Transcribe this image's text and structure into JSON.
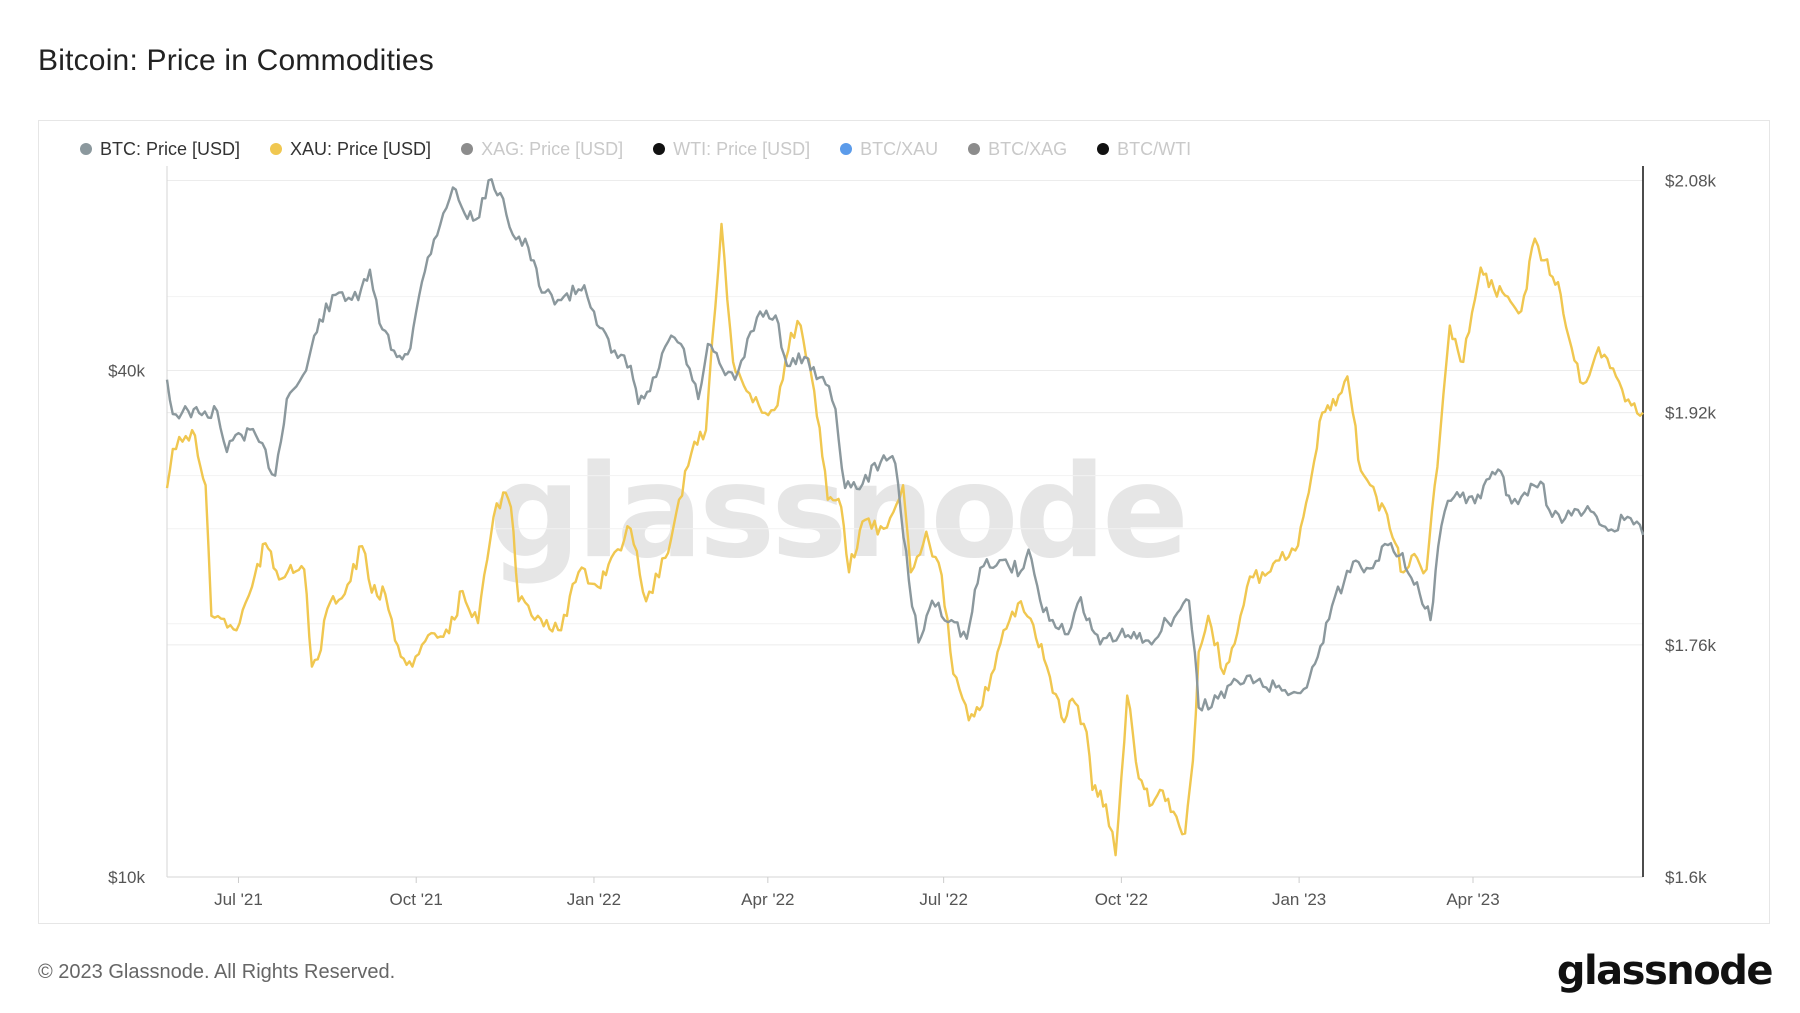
{
  "title": "Bitcoin: Price in Commodities",
  "footer": {
    "copyright": "© 2023 Glassnode. All Rights Reserved.",
    "brand": "glassnode"
  },
  "watermark": "glassnode",
  "legend": [
    {
      "label": "BTC: Price [USD]",
      "color": "#8b989d",
      "active": true,
      "icon": "legend-dot"
    },
    {
      "label": "XAU: Price [USD]",
      "color": "#f0c750",
      "active": true,
      "icon": "legend-dot"
    },
    {
      "label": "XAG: Price [USD]",
      "color": "#8c8c8c",
      "active": false,
      "icon": "legend-dot"
    },
    {
      "label": "WTI: Price [USD]",
      "color": "#111111",
      "active": false,
      "icon": "legend-dot"
    },
    {
      "label": "BTC/XAU",
      "color": "#5b9bea",
      "active": false,
      "icon": "legend-dot"
    },
    {
      "label": "BTC/XAG",
      "color": "#8c8c8c",
      "active": false,
      "icon": "legend-dot"
    },
    {
      "label": "BTC/WTI",
      "color": "#111111",
      "active": false,
      "icon": "legend-dot"
    }
  ],
  "chart_data": {
    "type": "line",
    "title": "Bitcoin: Price in Commodities",
    "grid": true,
    "legend_position": "top-left",
    "x_range": [
      "2021-05-25",
      "2023-06-28"
    ],
    "x_ticks": [
      {
        "date": "2021-07-01",
        "label": "Jul '21"
      },
      {
        "date": "2021-10-01",
        "label": "Oct '21"
      },
      {
        "date": "2022-01-01",
        "label": "Jan '22"
      },
      {
        "date": "2022-04-01",
        "label": "Apr '22"
      },
      {
        "date": "2022-07-01",
        "label": "Jul '22"
      },
      {
        "date": "2022-10-01",
        "label": "Oct '22"
      },
      {
        "date": "2023-01-01",
        "label": "Jan '23"
      },
      {
        "date": "2023-04-01",
        "label": "Apr '23"
      }
    ],
    "y_left": {
      "scale": "log",
      "range": [
        10000,
        70000
      ],
      "ticks": [
        {
          "value": 40000,
          "label": "$40k"
        },
        {
          "value": 10000,
          "label": "$10k"
        }
      ]
    },
    "y_right": {
      "scale": "linear",
      "range": [
        1600,
        2090
      ],
      "ticks": [
        {
          "value": 2080,
          "label": "$2.08k"
        },
        {
          "value": 1920,
          "label": "$1.92k"
        },
        {
          "value": 1760,
          "label": "$1.76k"
        },
        {
          "value": 1600,
          "label": "$1.6k"
        }
      ]
    },
    "series": [
      {
        "name": "BTC: Price [USD]",
        "axis": "left",
        "color": "#8b989d",
        "points": [
          [
            "2021-05-25",
            39000
          ],
          [
            "2021-05-28",
            35500
          ],
          [
            "2021-06-05",
            35800
          ],
          [
            "2021-06-12",
            35400
          ],
          [
            "2021-06-20",
            35800
          ],
          [
            "2021-06-25",
            32000
          ],
          [
            "2021-07-01",
            33700
          ],
          [
            "2021-07-10",
            33500
          ],
          [
            "2021-07-20",
            30000
          ],
          [
            "2021-07-26",
            37000
          ],
          [
            "2021-08-05",
            40000
          ],
          [
            "2021-08-12",
            46000
          ],
          [
            "2021-08-22",
            49500
          ],
          [
            "2021-09-01",
            48500
          ],
          [
            "2021-09-07",
            52700
          ],
          [
            "2021-09-12",
            45500
          ],
          [
            "2021-09-21",
            41500
          ],
          [
            "2021-09-28",
            42500
          ],
          [
            "2021-10-01",
            47000
          ],
          [
            "2021-10-07",
            54500
          ],
          [
            "2021-10-15",
            61500
          ],
          [
            "2021-10-20",
            66000
          ],
          [
            "2021-10-26",
            61500
          ],
          [
            "2021-11-01",
            60500
          ],
          [
            "2021-11-09",
            67500
          ],
          [
            "2021-11-15",
            64000
          ],
          [
            "2021-11-20",
            58000
          ],
          [
            "2021-11-28",
            56000
          ],
          [
            "2021-12-05",
            49500
          ],
          [
            "2021-12-15",
            48500
          ],
          [
            "2021-12-27",
            50500
          ],
          [
            "2022-01-01",
            47000
          ],
          [
            "2022-01-10",
            42000
          ],
          [
            "2022-01-20",
            40500
          ],
          [
            "2022-01-24",
            36500
          ],
          [
            "2022-01-30",
            37800
          ],
          [
            "2022-02-10",
            44000
          ],
          [
            "2022-02-15",
            43000
          ],
          [
            "2022-02-24",
            37000
          ],
          [
            "2022-03-01",
            43000
          ],
          [
            "2022-03-10",
            39500
          ],
          [
            "2022-03-15",
            39000
          ],
          [
            "2022-03-28",
            47000
          ],
          [
            "2022-04-05",
            46500
          ],
          [
            "2022-04-11",
            40500
          ],
          [
            "2022-04-20",
            41500
          ],
          [
            "2022-05-01",
            38500
          ],
          [
            "2022-05-06",
            36000
          ],
          [
            "2022-05-11",
            29000
          ],
          [
            "2022-05-20",
            29300
          ],
          [
            "2022-05-31",
            31700
          ],
          [
            "2022-06-06",
            31000
          ],
          [
            "2022-06-13",
            22500
          ],
          [
            "2022-06-18",
            19000
          ],
          [
            "2022-06-25",
            21300
          ],
          [
            "2022-07-05",
            20200
          ],
          [
            "2022-07-13",
            19200
          ],
          [
            "2022-07-20",
            23300
          ],
          [
            "2022-07-30",
            23800
          ],
          [
            "2022-08-10",
            23100
          ],
          [
            "2022-08-14",
            24500
          ],
          [
            "2022-08-20",
            21300
          ],
          [
            "2022-08-28",
            19800
          ],
          [
            "2022-09-05",
            19800
          ],
          [
            "2022-09-10",
            21500
          ],
          [
            "2022-09-13",
            20200
          ],
          [
            "2022-09-20",
            18900
          ],
          [
            "2022-09-30",
            19400
          ],
          [
            "2022-10-15",
            19100
          ],
          [
            "2022-10-25",
            20100
          ],
          [
            "2022-10-30",
            20600
          ],
          [
            "2022-11-05",
            21300
          ],
          [
            "2022-11-08",
            18500
          ],
          [
            "2022-11-10",
            15900
          ],
          [
            "2022-11-20",
            16300
          ],
          [
            "2022-11-30",
            17100
          ],
          [
            "2022-12-10",
            17100
          ],
          [
            "2022-12-20",
            16800
          ],
          [
            "2022-12-31",
            16550
          ],
          [
            "2023-01-05",
            16800
          ],
          [
            "2023-01-12",
            18800
          ],
          [
            "2023-01-18",
            21000
          ],
          [
            "2023-01-29",
            23700
          ],
          [
            "2023-02-05",
            23300
          ],
          [
            "2023-02-16",
            24800
          ],
          [
            "2023-02-22",
            24100
          ],
          [
            "2023-03-03",
            22400
          ],
          [
            "2023-03-10",
            20200
          ],
          [
            "2023-03-14",
            24700
          ],
          [
            "2023-03-19",
            28000
          ],
          [
            "2023-03-30",
            28300
          ],
          [
            "2023-04-05",
            28200
          ],
          [
            "2023-04-11",
            30300
          ],
          [
            "2023-04-14",
            30500
          ],
          [
            "2023-04-21",
            27800
          ],
          [
            "2023-04-26",
            28300
          ],
          [
            "2023-05-06",
            29500
          ],
          [
            "2023-05-12",
            26800
          ],
          [
            "2023-05-22",
            26900
          ],
          [
            "2023-06-01",
            27200
          ],
          [
            "2023-06-10",
            25800
          ],
          [
            "2023-06-20",
            26800
          ],
          [
            "2023-06-28",
            25500
          ]
        ]
      },
      {
        "name": "XAU: Price [USD]",
        "axis": "right",
        "color": "#f0c750",
        "points": [
          [
            "2021-05-25",
            1868
          ],
          [
            "2021-05-28",
            1895
          ],
          [
            "2021-06-02",
            1900
          ],
          [
            "2021-06-07",
            1908
          ],
          [
            "2021-06-10",
            1890
          ],
          [
            "2021-06-14",
            1870
          ],
          [
            "2021-06-17",
            1780
          ],
          [
            "2021-06-22",
            1778
          ],
          [
            "2021-06-30",
            1770
          ],
          [
            "2021-07-08",
            1800
          ],
          [
            "2021-07-15",
            1830
          ],
          [
            "2021-07-22",
            1805
          ],
          [
            "2021-07-28",
            1815
          ],
          [
            "2021-08-04",
            1812
          ],
          [
            "2021-08-08",
            1745
          ],
          [
            "2021-08-11",
            1750
          ],
          [
            "2021-08-16",
            1785
          ],
          [
            "2021-08-25",
            1795
          ],
          [
            "2021-09-03",
            1828
          ],
          [
            "2021-09-08",
            1796
          ],
          [
            "2021-09-15",
            1795
          ],
          [
            "2021-09-20",
            1763
          ],
          [
            "2021-09-29",
            1745
          ],
          [
            "2021-10-04",
            1760
          ],
          [
            "2021-10-12",
            1765
          ],
          [
            "2021-10-18",
            1768
          ],
          [
            "2021-10-25",
            1797
          ],
          [
            "2021-11-02",
            1775
          ],
          [
            "2021-11-10",
            1848
          ],
          [
            "2021-11-15",
            1865
          ],
          [
            "2021-11-19",
            1855
          ],
          [
            "2021-11-23",
            1790
          ],
          [
            "2021-12-03",
            1780
          ],
          [
            "2021-12-15",
            1770
          ],
          [
            "2021-12-24",
            1810
          ],
          [
            "2022-01-03",
            1800
          ],
          [
            "2022-01-10",
            1820
          ],
          [
            "2022-01-20",
            1840
          ],
          [
            "2022-01-28",
            1790
          ],
          [
            "2022-02-07",
            1820
          ],
          [
            "2022-02-14",
            1860
          ],
          [
            "2022-02-22",
            1900
          ],
          [
            "2022-02-28",
            1908
          ],
          [
            "2022-03-08",
            2050
          ],
          [
            "2022-03-14",
            1955
          ],
          [
            "2022-03-21",
            1935
          ],
          [
            "2022-03-29",
            1920
          ],
          [
            "2022-04-06",
            1925
          ],
          [
            "2022-04-13",
            1975
          ],
          [
            "2022-04-18",
            1980
          ],
          [
            "2022-04-25",
            1935
          ],
          [
            "2022-05-02",
            1860
          ],
          [
            "2022-05-09",
            1855
          ],
          [
            "2022-05-13",
            1810
          ],
          [
            "2022-05-20",
            1845
          ],
          [
            "2022-05-31",
            1840
          ],
          [
            "2022-06-10",
            1870
          ],
          [
            "2022-06-14",
            1810
          ],
          [
            "2022-06-22",
            1838
          ],
          [
            "2022-06-30",
            1808
          ],
          [
            "2022-07-06",
            1740
          ],
          [
            "2022-07-14",
            1708
          ],
          [
            "2022-07-21",
            1718
          ],
          [
            "2022-08-01",
            1770
          ],
          [
            "2022-08-10",
            1790
          ],
          [
            "2022-08-15",
            1778
          ],
          [
            "2022-08-22",
            1750
          ],
          [
            "2022-08-31",
            1710
          ],
          [
            "2022-09-07",
            1720
          ],
          [
            "2022-09-13",
            1700
          ],
          [
            "2022-09-16",
            1660
          ],
          [
            "2022-09-23",
            1650
          ],
          [
            "2022-09-28",
            1615
          ],
          [
            "2022-10-04",
            1725
          ],
          [
            "2022-10-10",
            1668
          ],
          [
            "2022-10-17",
            1650
          ],
          [
            "2022-10-21",
            1660
          ],
          [
            "2022-10-28",
            1645
          ],
          [
            "2022-11-03",
            1630
          ],
          [
            "2022-11-07",
            1680
          ],
          [
            "2022-11-10",
            1755
          ],
          [
            "2022-11-15",
            1780
          ],
          [
            "2022-11-23",
            1740
          ],
          [
            "2022-11-30",
            1768
          ],
          [
            "2022-12-05",
            1800
          ],
          [
            "2022-12-13",
            1810
          ],
          [
            "2022-12-20",
            1818
          ],
          [
            "2022-12-30",
            1825
          ],
          [
            "2023-01-06",
            1865
          ],
          [
            "2023-01-13",
            1920
          ],
          [
            "2023-01-20",
            1925
          ],
          [
            "2023-01-26",
            1945
          ],
          [
            "2023-02-02",
            1880
          ],
          [
            "2023-02-10",
            1862
          ],
          [
            "2023-02-17",
            1840
          ],
          [
            "2023-02-24",
            1810
          ],
          [
            "2023-03-03",
            1820
          ],
          [
            "2023-03-08",
            1812
          ],
          [
            "2023-03-15",
            1905
          ],
          [
            "2023-03-20",
            1980
          ],
          [
            "2023-03-27",
            1955
          ],
          [
            "2023-04-05",
            2020
          ],
          [
            "2023-04-12",
            2005
          ],
          [
            "2023-04-19",
            2000
          ],
          [
            "2023-04-26",
            1990
          ],
          [
            "2023-05-03",
            2040
          ],
          [
            "2023-05-08",
            2025
          ],
          [
            "2023-05-15",
            2010
          ],
          [
            "2023-05-22",
            1965
          ],
          [
            "2023-05-28",
            1940
          ],
          [
            "2023-06-05",
            1965
          ],
          [
            "2023-06-14",
            1945
          ],
          [
            "2023-06-22",
            1925
          ],
          [
            "2023-06-28",
            1920
          ]
        ]
      }
    ]
  }
}
